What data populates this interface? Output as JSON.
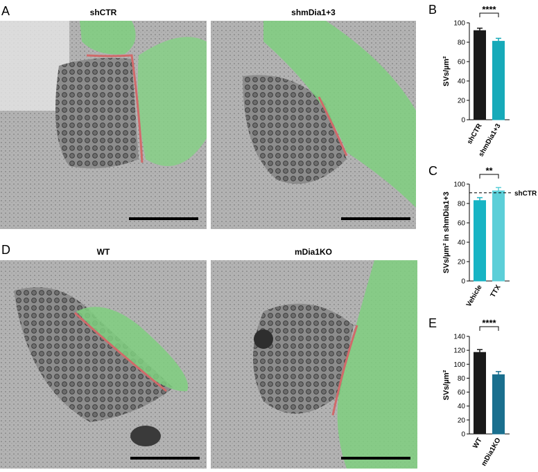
{
  "figure": {
    "panel_a": "A",
    "panel_d": "D",
    "images": [
      "shCTR",
      "shmDia1+3",
      "WT",
      "mDia1KO"
    ]
  },
  "chart_data": [
    {
      "type": "bar",
      "panel": "B",
      "ylabel": "SVs/µm²",
      "categories": [
        "shCTR",
        "shmDia1+3"
      ],
      "values": [
        92,
        81
      ],
      "errors": [
        2.5,
        3
      ],
      "colors": [
        "#1a1a1a",
        "#17aab9"
      ],
      "ylim": [
        0,
        100
      ],
      "yticks": [
        0,
        20,
        40,
        60,
        80,
        100
      ],
      "significance": "****"
    },
    {
      "type": "bar",
      "panel": "C",
      "ylabel": "SVs/µm² in shmDia1+3",
      "categories": [
        "Vehicle",
        "TTX"
      ],
      "values": [
        83,
        93
      ],
      "errors": [
        3,
        3.5
      ],
      "colors": [
        "#17b4c4",
        "#5ccfd8"
      ],
      "ylim": [
        0,
        100
      ],
      "yticks": [
        0,
        20,
        40,
        60,
        80,
        100
      ],
      "significance": "**",
      "reference": {
        "value": 91,
        "label": "shCTR"
      }
    },
    {
      "type": "bar",
      "panel": "E",
      "ylabel": "SVs/µm²",
      "categories": [
        "WT",
        "mDia1KO"
      ],
      "values": [
        117,
        85
      ],
      "errors": [
        4,
        4.5
      ],
      "colors": [
        "#1a1a1a",
        "#1a6f8e"
      ],
      "ylim": [
        0,
        140
      ],
      "yticks": [
        0,
        20,
        40,
        60,
        80,
        100,
        120,
        140
      ],
      "significance": "****"
    }
  ]
}
